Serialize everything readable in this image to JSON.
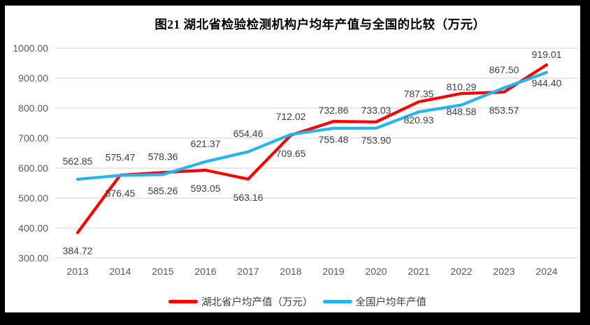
{
  "title": "图21  湖北省检验检测机构户均年产值与全国的比较（万元）",
  "colors": {
    "frame": "#000000",
    "background": "#ffffff",
    "grid_line": "#d9d9d9",
    "axis_text": "#595959",
    "data_label_text": "#404040",
    "title_text": "#000000",
    "hubei_series": "#fe0000",
    "national_series": "#25b4ed"
  },
  "legend": {
    "items": [
      {
        "label": "湖北省户均产值（万元）",
        "color": "#fe0000"
      },
      {
        "label": "全国户均年产值",
        "color": "#25b4ed"
      }
    ],
    "position": "bottom"
  },
  "chart_data": {
    "type": "line",
    "x": [
      "2013",
      "2014",
      "2015",
      "2016",
      "2017",
      "2018",
      "2019",
      "2020",
      "2021",
      "2022",
      "2023",
      "2024"
    ],
    "series": [
      {
        "name": "湖北省户均产值（万元）",
        "color": "#fe0000",
        "label_position": "below",
        "values": [
          384.72,
          576.45,
          585.26,
          593.05,
          563.16,
          709.65,
          755.48,
          753.9,
          820.93,
          848.58,
          853.57,
          944.4
        ]
      },
      {
        "name": "全国户均年产值",
        "color": "#25b4ed",
        "label_position": "above",
        "values": [
          562.85,
          575.47,
          578.36,
          621.37,
          654.46,
          712.02,
          732.86,
          733.03,
          787.35,
          810.29,
          867.5,
          919.01
        ]
      }
    ],
    "title": "图21  湖北省检验检测机构户均年产值与全国的比较（万元）",
    "xlabel": "",
    "ylabel": "",
    "ylim": [
      300,
      1000
    ],
    "ytick_step": 100,
    "ytick_decimals": 2,
    "data_label_decimals": 2,
    "grid": true,
    "legend_position": "bottom"
  }
}
